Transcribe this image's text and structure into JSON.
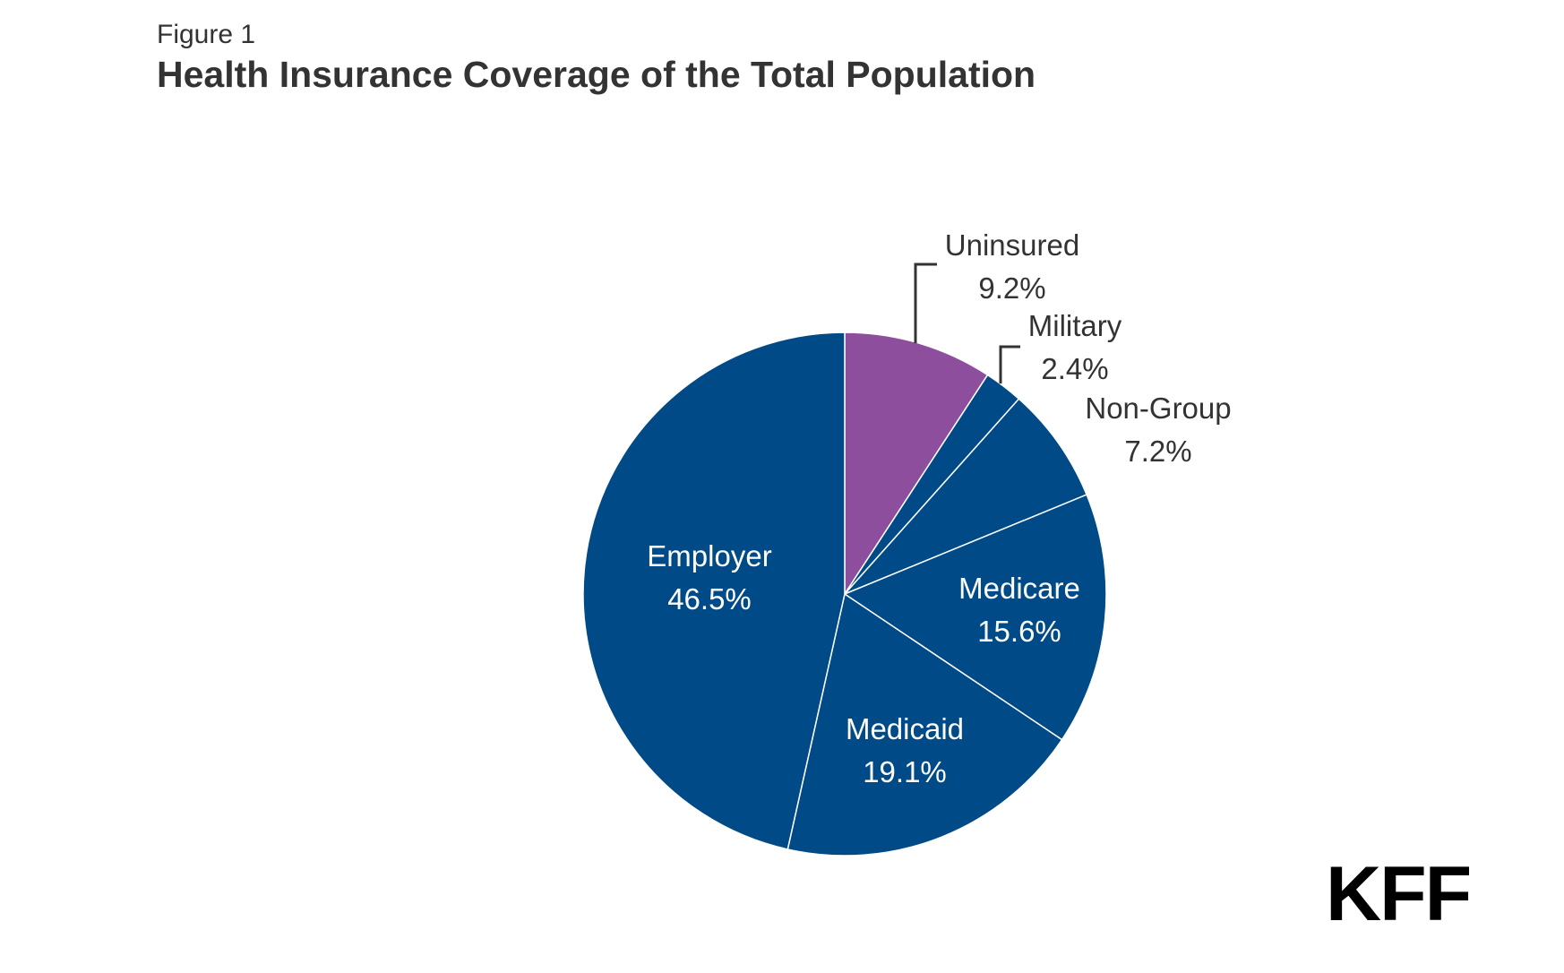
{
  "figure_label": "Figure 1",
  "title": "Health Insurance Coverage of the Total Population",
  "logo_text": "KFF",
  "colors": {
    "primary": "#004A87",
    "uninsured": "#8E4E9E",
    "text": "#333333"
  },
  "chart_data": {
    "type": "pie",
    "title": "Health Insurance Coverage of the Total Population",
    "start": "12 o'clock",
    "direction": "clockwise",
    "slices": [
      {
        "label": "Uninsured",
        "value_label": "9.2%",
        "value": 9.2,
        "color": "#8E4E9E",
        "label_position": "outside"
      },
      {
        "label": "Military",
        "value_label": "2.4%",
        "value": 2.4,
        "color": "#004A87",
        "label_position": "outside"
      },
      {
        "label": "Non-Group",
        "value_label": "7.2%",
        "value": 7.2,
        "color": "#004A87",
        "label_position": "outside"
      },
      {
        "label": "Medicare",
        "value_label": "15.6%",
        "value": 15.6,
        "color": "#004A87",
        "label_position": "inside"
      },
      {
        "label": "Medicaid",
        "value_label": "19.1%",
        "value": 19.1,
        "color": "#004A87",
        "label_position": "inside"
      },
      {
        "label": "Employer",
        "value_label": "46.5%",
        "value": 46.5,
        "color": "#004A87",
        "label_position": "inside"
      }
    ]
  }
}
